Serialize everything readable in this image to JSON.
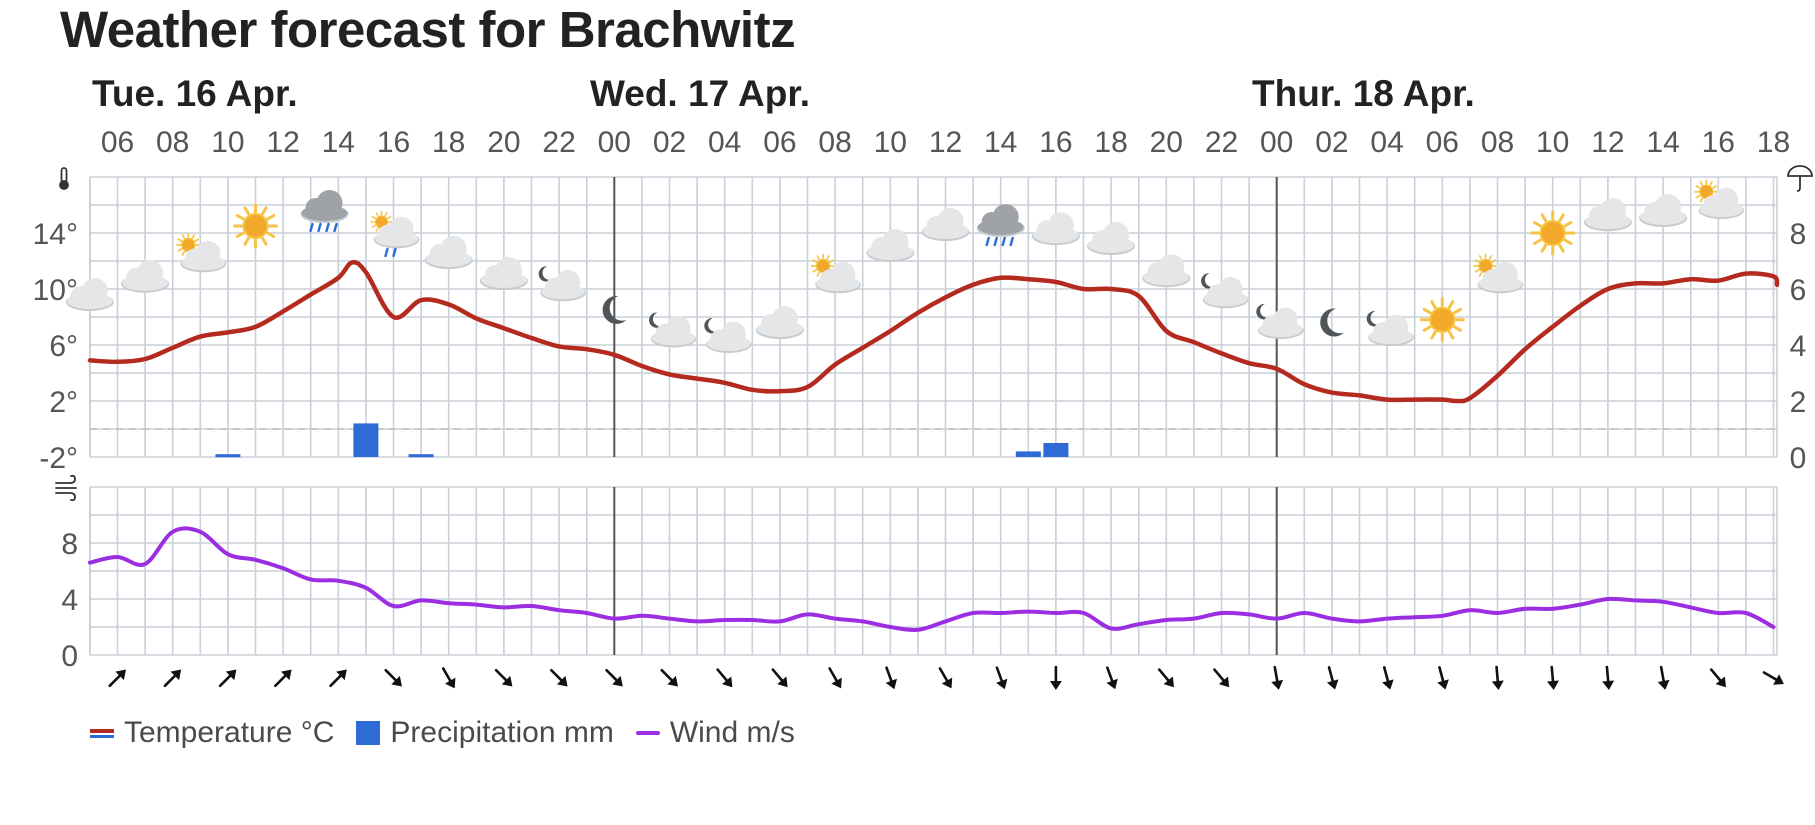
{
  "page": {
    "title": "Weather forecast for Brachwitz"
  },
  "day_labels": [
    {
      "label": "Tue. 16 Apr.",
      "hour_index": 0
    },
    {
      "label": "Wed. 17 Apr.",
      "hour_index": 18
    },
    {
      "label": "Thur. 18 Apr.",
      "hour_index": 42
    }
  ],
  "hour_labels": [
    "06",
    "08",
    "10",
    "12",
    "14",
    "16",
    "18",
    "20",
    "22",
    "00",
    "02",
    "04",
    "06",
    "08",
    "10",
    "12",
    "14",
    "16",
    "18",
    "20",
    "22",
    "00",
    "02",
    "04",
    "06",
    "08",
    "10",
    "12",
    "14",
    "16",
    "18"
  ],
  "legend": [
    {
      "key": "temp",
      "label": "Temperature °C"
    },
    {
      "key": "precip",
      "label": "Precipitation mm"
    },
    {
      "key": "wind",
      "label": "Wind m/s"
    }
  ],
  "colors": {
    "temperature": "#b52a1f",
    "precipitation": "#2f6bd6",
    "wind": "#9b2ee0",
    "grid": "#c9d0d8",
    "day_divider": "#555555",
    "zero_line": "#c8c8c8"
  },
  "icons": {
    "temperature_axis": "thermometer-icon",
    "precipitation_axis": "umbrella-icon",
    "wind_axis": "wind-icon"
  },
  "chart_data": [
    {
      "type": "line",
      "title": "",
      "x_unit": "hours from Tue 16 Apr 06:00",
      "x_range": [
        -1,
        60
      ],
      "ylabel": "Temperature °C",
      "y_ticks": [
        -2,
        2,
        6,
        10,
        14
      ],
      "y_tick_labels": [
        "-2°",
        "2°",
        "6°",
        "10°",
        "14°"
      ],
      "ylim": [
        -2,
        18
      ],
      "zero_line": 0,
      "series": [
        {
          "name": "Temperature °C",
          "points": [
            [
              -1,
              4.9
            ],
            [
              0,
              4.8
            ],
            [
              1,
              5.0
            ],
            [
              2,
              5.8
            ],
            [
              3,
              6.6
            ],
            [
              4,
              6.9
            ],
            [
              5,
              7.3
            ],
            [
              6,
              8.4
            ],
            [
              7,
              9.6
            ],
            [
              8,
              10.8
            ],
            [
              8.5,
              11.9
            ],
            [
              9,
              11.2
            ],
            [
              10,
              8.0
            ],
            [
              11,
              9.2
            ],
            [
              12,
              8.9
            ],
            [
              13,
              7.9
            ],
            [
              14,
              7.2
            ],
            [
              15,
              6.5
            ],
            [
              16,
              5.9
            ],
            [
              17,
              5.7
            ],
            [
              18,
              5.3
            ],
            [
              19,
              4.5
            ],
            [
              20,
              3.9
            ],
            [
              21,
              3.6
            ],
            [
              22,
              3.3
            ],
            [
              23,
              2.8
            ],
            [
              24,
              2.7
            ],
            [
              25,
              3.0
            ],
            [
              26,
              4.6
            ],
            [
              27,
              5.8
            ],
            [
              28,
              7.0
            ],
            [
              29,
              8.3
            ],
            [
              30,
              9.4
            ],
            [
              31,
              10.3
            ],
            [
              32,
              10.8
            ],
            [
              33,
              10.7
            ],
            [
              34,
              10.5
            ],
            [
              35,
              10.0
            ],
            [
              36,
              10.0
            ],
            [
              37,
              9.5
            ],
            [
              38,
              7.0
            ],
            [
              39,
              6.2
            ],
            [
              40,
              5.4
            ],
            [
              41,
              4.7
            ],
            [
              42,
              4.3
            ],
            [
              43,
              3.2
            ],
            [
              44,
              2.6
            ],
            [
              45,
              2.4
            ],
            [
              46,
              2.1
            ],
            [
              47,
              2.1
            ],
            [
              48,
              2.1
            ],
            [
              48.5,
              2.0
            ],
            [
              49,
              2.2
            ],
            [
              50,
              3.8
            ],
            [
              51,
              5.7
            ],
            [
              52,
              7.3
            ],
            [
              53,
              8.8
            ],
            [
              54,
              10.0
            ],
            [
              55,
              10.4
            ],
            [
              56,
              10.4
            ],
            [
              57,
              10.7
            ],
            [
              58,
              10.6
            ],
            [
              59,
              11.1
            ],
            [
              60,
              10.9
            ],
            [
              61,
              10.3
            ]
          ]
        }
      ]
    },
    {
      "type": "bar",
      "title": "",
      "ylabel": "Precipitation mm",
      "y_ticks": [
        0,
        2,
        4,
        6,
        8
      ],
      "y_tick_labels": [
        "0",
        "2",
        "4",
        "6",
        "8"
      ],
      "ylim": [
        0,
        10
      ],
      "series": [
        {
          "name": "Precipitation mm",
          "points": [
            [
              4,
              0.1
            ],
            [
              9,
              1.2
            ],
            [
              11,
              0.1
            ],
            [
              33,
              0.2
            ],
            [
              34,
              0.5
            ]
          ]
        }
      ]
    },
    {
      "type": "line",
      "title": "",
      "ylabel": "Wind m/s",
      "y_ticks": [
        0,
        4,
        8
      ],
      "y_tick_labels": [
        "0",
        "4",
        "8"
      ],
      "ylim": [
        0,
        12
      ],
      "series": [
        {
          "name": "Wind m/s",
          "points": [
            [
              -1,
              6.6
            ],
            [
              0,
              7.0
            ],
            [
              1,
              6.5
            ],
            [
              2,
              8.8
            ],
            [
              3,
              8.8
            ],
            [
              4,
              7.2
            ],
            [
              5,
              6.8
            ],
            [
              6,
              6.2
            ],
            [
              7,
              5.4
            ],
            [
              8,
              5.3
            ],
            [
              9,
              4.8
            ],
            [
              10,
              3.5
            ],
            [
              11,
              3.9
            ],
            [
              12,
              3.7
            ],
            [
              13,
              3.6
            ],
            [
              14,
              3.4
            ],
            [
              15,
              3.5
            ],
            [
              16,
              3.2
            ],
            [
              17,
              3.0
            ],
            [
              18,
              2.6
            ],
            [
              19,
              2.8
            ],
            [
              20,
              2.6
            ],
            [
              21,
              2.4
            ],
            [
              22,
              2.5
            ],
            [
              23,
              2.5
            ],
            [
              24,
              2.4
            ],
            [
              25,
              2.9
            ],
            [
              26,
              2.6
            ],
            [
              27,
              2.4
            ],
            [
              28,
              2.0
            ],
            [
              29,
              1.8
            ],
            [
              30,
              2.4
            ],
            [
              31,
              3.0
            ],
            [
              32,
              3.0
            ],
            [
              33,
              3.1
            ],
            [
              34,
              3.0
            ],
            [
              35,
              3.0
            ],
            [
              36,
              1.9
            ],
            [
              37,
              2.2
            ],
            [
              38,
              2.5
            ],
            [
              39,
              2.6
            ],
            [
              40,
              3.0
            ],
            [
              41,
              2.9
            ],
            [
              42,
              2.6
            ],
            [
              43,
              3.0
            ],
            [
              44,
              2.6
            ],
            [
              45,
              2.4
            ],
            [
              46,
              2.6
            ],
            [
              47,
              2.7
            ],
            [
              48,
              2.8
            ],
            [
              49,
              3.2
            ],
            [
              50,
              3.0
            ],
            [
              51,
              3.3
            ],
            [
              52,
              3.3
            ],
            [
              53,
              3.6
            ],
            [
              54,
              4.0
            ],
            [
              55,
              3.9
            ],
            [
              56,
              3.8
            ],
            [
              57,
              3.4
            ],
            [
              58,
              3.0
            ],
            [
              59,
              3.0
            ],
            [
              60,
              2.0
            ]
          ]
        }
      ]
    }
  ],
  "weather_icons": [
    {
      "hour": -1,
      "temp": 9.5,
      "icon": "cloud"
    },
    {
      "hour": 1,
      "temp": 10.8,
      "icon": "cloud"
    },
    {
      "hour": 3,
      "temp": 12.5,
      "icon": "sun-behind-cloud"
    },
    {
      "hour": 5,
      "temp": 14.5,
      "icon": "sun"
    },
    {
      "hour": 7.5,
      "temp": 15.5,
      "icon": "cloud-rain"
    },
    {
      "hour": 10,
      "temp": 14.0,
      "icon": "sun-behind-cloud-rain"
    },
    {
      "hour": 12,
      "temp": 12.5,
      "icon": "cloud"
    },
    {
      "hour": 14,
      "temp": 11.0,
      "icon": "cloud"
    },
    {
      "hour": 16,
      "temp": 10.5,
      "icon": "moon-cloud"
    },
    {
      "hour": 18,
      "temp": 8.5,
      "icon": "moon"
    },
    {
      "hour": 20,
      "temp": 7.2,
      "icon": "moon-cloud"
    },
    {
      "hour": 22,
      "temp": 6.8,
      "icon": "moon-cloud"
    },
    {
      "hour": 24,
      "temp": 7.5,
      "icon": "cloud"
    },
    {
      "hour": 26,
      "temp": 11.0,
      "icon": "sun-behind-cloud"
    },
    {
      "hour": 28,
      "temp": 13.0,
      "icon": "cloud"
    },
    {
      "hour": 30,
      "temp": 14.5,
      "icon": "cloud"
    },
    {
      "hour": 32,
      "temp": 14.5,
      "icon": "cloud-rain"
    },
    {
      "hour": 34,
      "temp": 14.2,
      "icon": "cloud"
    },
    {
      "hour": 36,
      "temp": 13.5,
      "icon": "cloud"
    },
    {
      "hour": 38,
      "temp": 11.2,
      "icon": "cloud"
    },
    {
      "hour": 40,
      "temp": 10.0,
      "icon": "moon-cloud"
    },
    {
      "hour": 42,
      "temp": 7.8,
      "icon": "moon-cloud"
    },
    {
      "hour": 44,
      "temp": 7.6,
      "icon": "moon"
    },
    {
      "hour": 46,
      "temp": 7.3,
      "icon": "moon-cloud"
    },
    {
      "hour": 48,
      "temp": 7.8,
      "icon": "sun"
    },
    {
      "hour": 50,
      "temp": 11.0,
      "icon": "sun-behind-cloud"
    },
    {
      "hour": 52,
      "temp": 14.0,
      "icon": "sun"
    },
    {
      "hour": 54,
      "temp": 15.2,
      "icon": "cloud"
    },
    {
      "hour": 56,
      "temp": 15.5,
      "icon": "cloud"
    },
    {
      "hour": 58,
      "temp": 16.3,
      "icon": "sun-behind-cloud"
    }
  ],
  "wind_directions": [
    225,
    225,
    225,
    225,
    225,
    315,
    330,
    315,
    315,
    315,
    315,
    320,
    320,
    330,
    340,
    330,
    340,
    0,
    340,
    320,
    320,
    350,
    345,
    345,
    345,
    355,
    355,
    355,
    350,
    320,
    300
  ]
}
